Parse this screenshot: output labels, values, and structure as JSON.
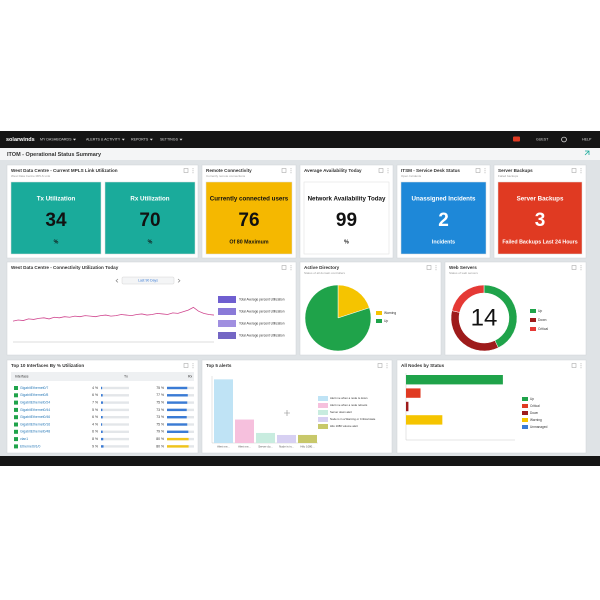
{
  "nav": {
    "logo": "solarwinds",
    "menu": [
      "MY DASHBOARDS",
      "ALERTS & ACTIVITY",
      "REPORTS",
      "SETTINGS"
    ],
    "user": "GUEST",
    "help": "HELP"
  },
  "page_title": "ITOM - Operational Status Summary",
  "mpls": {
    "title": "West Data Centre - Current MPLS Link Utilization",
    "subtitle": "West Data Centre MPLS Link",
    "tiles": [
      {
        "label": "Tx Utilization",
        "value": 34,
        "unit": "%",
        "color": "#1aab9b"
      },
      {
        "label": "Rx Utilization",
        "value": 70,
        "unit": "%",
        "color": "#1aab9b"
      }
    ]
  },
  "remote": {
    "title": "Remote Connectivity",
    "subtitle": "Currently remote connections",
    "tile": {
      "label": "Currently connected users",
      "value": 76,
      "footer": "Of 80 Maximum",
      "color": "#f5b800"
    }
  },
  "availability": {
    "title": "Average Availability Today",
    "tile": {
      "label": "Network Availability Today",
      "value": 99,
      "footer": "%",
      "color": "#ffffff"
    }
  },
  "itsm": {
    "title": "ITSM - Service Desk Status",
    "subtitle": "Open Incidents",
    "tile": {
      "label": "Unassigned Incidents",
      "value": 2,
      "footer": "Incidents",
      "color": "#1e88d8"
    }
  },
  "backups": {
    "title": "Server Backups",
    "subtitle": "Failed backups",
    "tile": {
      "label": "Server Backups",
      "value": 3,
      "footer": "Failed Backups Last 24 Hours",
      "color": "#e03a22"
    }
  },
  "connectivity": {
    "title": "West Data Centre - Connectivity Utilization Today",
    "range_button": "Last 90 Days",
    "type": "line",
    "color": "#d0478f",
    "ylim": [
      0,
      100
    ],
    "values": [
      38,
      40,
      39,
      42,
      41,
      43,
      44,
      42,
      45,
      44,
      46,
      45,
      47,
      46,
      48,
      47,
      46,
      48,
      49,
      47,
      48,
      50,
      49,
      48,
      50,
      51,
      49,
      50,
      52,
      51,
      50,
      53,
      52,
      55,
      58,
      63,
      56,
      52,
      50,
      49
    ],
    "legend": [
      {
        "name": "Total Average percent Utilization",
        "color": "#6f5fd0"
      },
      {
        "name": "Total Average percent Utilization",
        "color": "#8a7ad8"
      },
      {
        "name": "Total Average percent Utilization",
        "color": "#a08fe0"
      },
      {
        "name": "Total Average percent Utilization",
        "color": "#7466c4"
      }
    ]
  },
  "active_directory": {
    "title": "Active Directory",
    "subtitle": "Status of all domain controllers",
    "type": "pie",
    "slices": [
      {
        "name": "Warning",
        "value": 20,
        "color": "#f5c400"
      },
      {
        "name": "Up",
        "value": 80,
        "color": "#1fa34a"
      }
    ]
  },
  "web_servers": {
    "title": "Web Servers",
    "subtitle": "Status of web servers",
    "type": "donut",
    "count": 14,
    "slices": [
      {
        "name": "Up",
        "value": 6,
        "color": "#1fa34a"
      },
      {
        "name": "Down",
        "value": 5,
        "color": "#9e1b1b"
      },
      {
        "name": "Critical",
        "value": 3,
        "color": "#e53935"
      }
    ]
  },
  "interfaces": {
    "title": "Top 10 Interfaces By % Utilization",
    "columns": [
      "Interface",
      "Tx",
      "Rx"
    ],
    "unit": "%",
    "rows": [
      {
        "name": "GigabitEthernet0/7",
        "tx": 4,
        "rx": 75,
        "rx_color": "#3a7bd5"
      },
      {
        "name": "GigabitEthernet0/8",
        "tx": 6,
        "rx": 77,
        "rx_color": "#3a7bd5"
      },
      {
        "name": "GigabitEthernet0/24",
        "tx": 7,
        "rx": 75,
        "rx_color": "#3a7bd5"
      },
      {
        "name": "GigabitEthernet0/44",
        "tx": 5,
        "rx": 73,
        "rx_color": "#3a7bd5"
      },
      {
        "name": "GigabitEthernet0/46",
        "tx": 6,
        "rx": 73,
        "rx_color": "#3a7bd5"
      },
      {
        "name": "GigabitEthernet0/16",
        "tx": 4,
        "rx": 75,
        "rx_color": "#3a7bd5"
      },
      {
        "name": "GigabitEthernet0/48",
        "tx": 6,
        "rx": 79,
        "rx_color": "#3a7bd5"
      },
      {
        "name": "vlan1",
        "tx": 8,
        "rx": 80,
        "rx_color": "#f0c419"
      },
      {
        "name": "Ethernet0/1/0",
        "tx": 9,
        "rx": 80,
        "rx_color": "#f0c419"
      }
    ]
  },
  "alerts": {
    "title": "Top 5 alerts",
    "type": "bar",
    "ylim": [
      0,
      100
    ],
    "bars": [
      {
        "category": "Alert me...",
        "name": "Alert me when a node is down",
        "value": 95,
        "color": "#bfe3f5"
      },
      {
        "category": "Alert me...",
        "name": "Alert me when a node reboots",
        "value": 35,
        "color": "#f6c0dd"
      },
      {
        "category": "Server do...",
        "name": "Server down alert",
        "value": 15,
        "color": "#c8ecdf"
      },
      {
        "category": "Node is in...",
        "name": "Node is in a Warning or Critical state",
        "value": 12,
        "color": "#d7d0f2"
      },
      {
        "category": "Hilo 1080...",
        "name": "Hilo 1080 volume alert",
        "value": 12,
        "color": "#c8c86a"
      }
    ]
  },
  "nodes": {
    "title": "All Nodes by Status",
    "type": "hbar",
    "xlim": [
      0,
      45
    ],
    "bars": [
      {
        "name": "Up",
        "value": 40,
        "color": "#1fa34a"
      },
      {
        "name": "Critical",
        "value": 6,
        "color": "#e03a22"
      },
      {
        "name": "Down",
        "value": 1,
        "color": "#9e1b1b"
      },
      {
        "name": "Warning",
        "value": 15,
        "color": "#f5c400"
      },
      {
        "name": "Unmanaged",
        "value": 0,
        "color": "#3a7bd5"
      }
    ]
  }
}
